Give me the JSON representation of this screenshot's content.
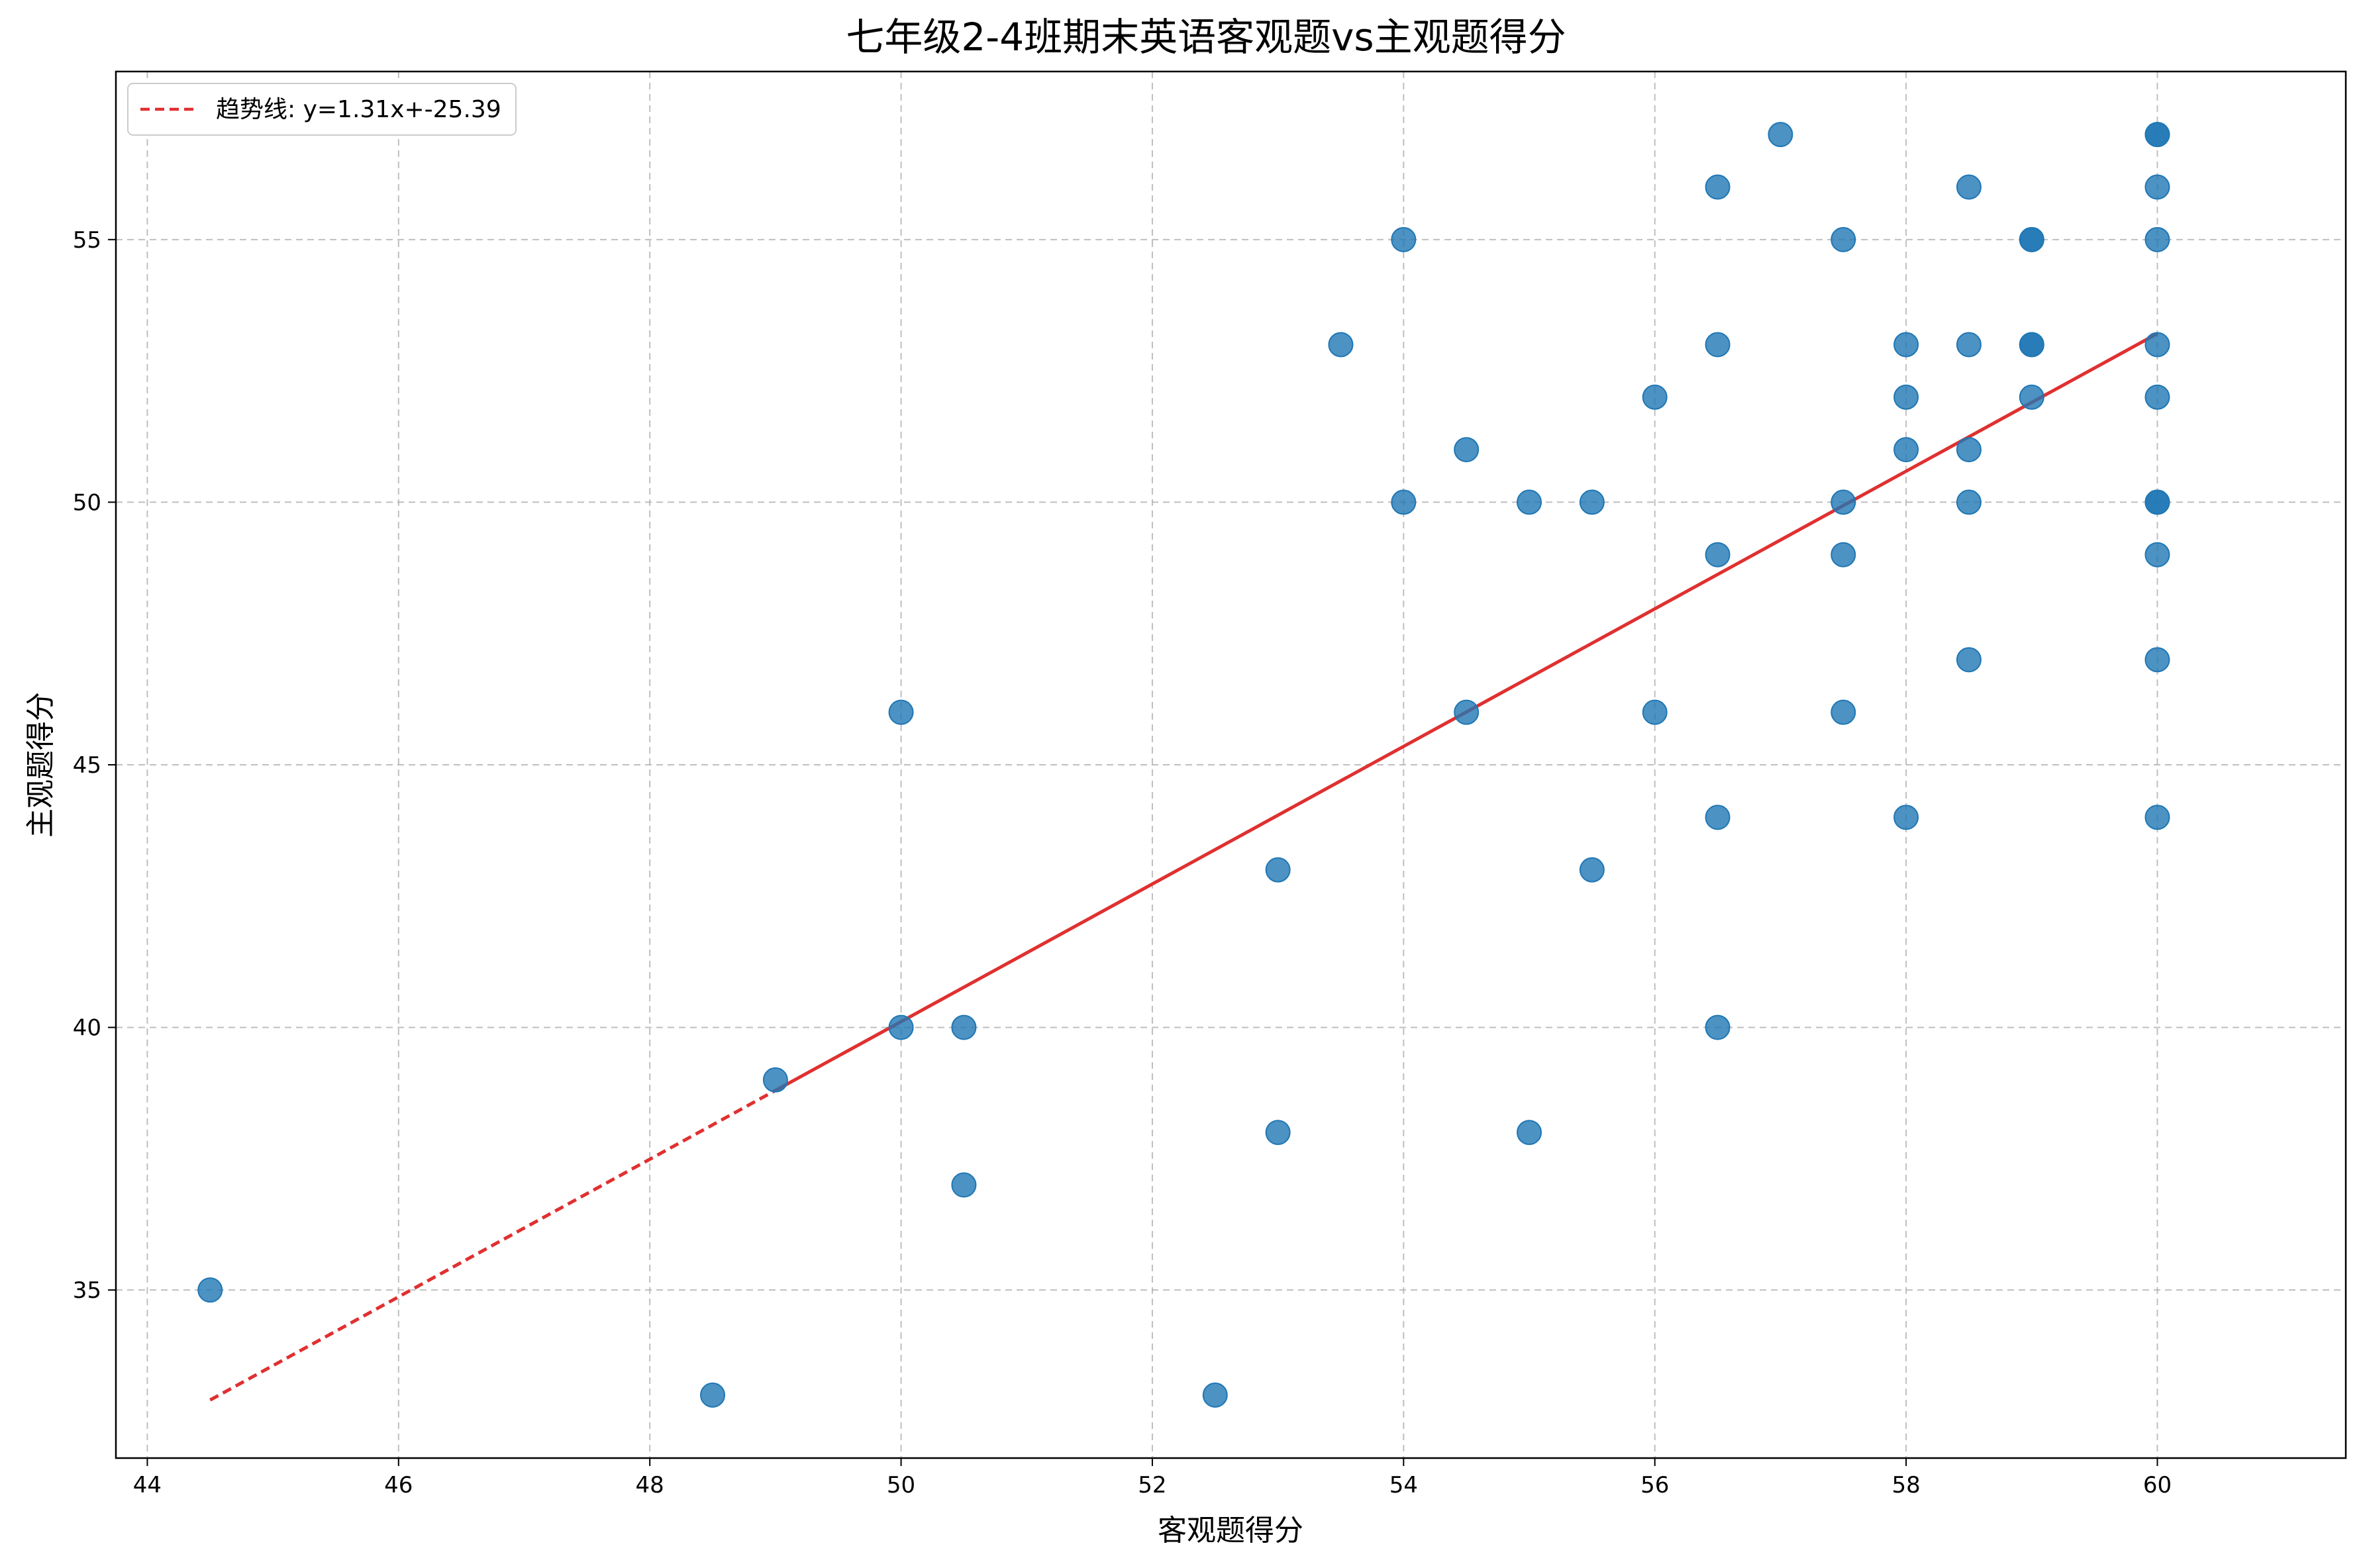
{
  "chart_data": {
    "type": "scatter",
    "title": "七年级2-4班期末英语客观题vs主观题得分",
    "xlabel": "客观题得分",
    "ylabel": "主观题得分",
    "xlim": [
      43.75,
      61.5
    ],
    "ylim": [
      31.8,
      58.2
    ],
    "xticks": [
      44,
      46,
      48,
      50,
      52,
      54,
      56,
      58,
      60
    ],
    "yticks": [
      35,
      40,
      45,
      50,
      55
    ],
    "grid": true,
    "legend_position": "top-left",
    "colors": {
      "points": "#1f77b4",
      "trend": "#e03030",
      "grid": "#b0b0b0"
    },
    "points": [
      [
        44.5,
        35
      ],
      [
        48.5,
        33
      ],
      [
        49,
        39
      ],
      [
        50,
        46
      ],
      [
        50,
        40
      ],
      [
        50.5,
        40
      ],
      [
        50.5,
        37
      ],
      [
        52.5,
        33
      ],
      [
        53,
        43
      ],
      [
        53,
        38
      ],
      [
        53.5,
        53
      ],
      [
        54,
        55
      ],
      [
        54,
        50
      ],
      [
        54.5,
        51
      ],
      [
        54.5,
        46
      ],
      [
        55,
        50
      ],
      [
        55,
        38
      ],
      [
        55.5,
        50
      ],
      [
        55.5,
        43
      ],
      [
        56,
        52
      ],
      [
        56,
        46
      ],
      [
        56.5,
        56
      ],
      [
        56.5,
        53
      ],
      [
        56.5,
        49
      ],
      [
        56.5,
        44
      ],
      [
        56.5,
        40
      ],
      [
        57,
        57
      ],
      [
        57.5,
        55
      ],
      [
        57.5,
        50
      ],
      [
        57.5,
        49
      ],
      [
        57.5,
        46
      ],
      [
        58,
        53
      ],
      [
        58,
        52
      ],
      [
        58,
        51
      ],
      [
        58,
        44
      ],
      [
        58.5,
        56
      ],
      [
        58.5,
        53
      ],
      [
        58.5,
        51
      ],
      [
        58.5,
        50
      ],
      [
        58.5,
        47
      ],
      [
        59,
        55
      ],
      [
        59,
        55
      ],
      [
        59,
        53
      ],
      [
        59,
        53
      ],
      [
        59,
        52
      ],
      [
        60,
        57
      ],
      [
        60,
        57
      ],
      [
        60,
        56
      ],
      [
        60,
        55
      ],
      [
        60,
        53
      ],
      [
        60,
        52
      ],
      [
        60,
        50
      ],
      [
        60,
        50
      ],
      [
        60,
        49
      ],
      [
        60,
        47
      ],
      [
        60,
        44
      ]
    ],
    "trend": {
      "label": "趋势线: y=1.31x+-25.39",
      "slope": 1.31,
      "intercept": -25.39,
      "x_range": [
        44.5,
        60
      ],
      "solid_from": 49
    }
  }
}
